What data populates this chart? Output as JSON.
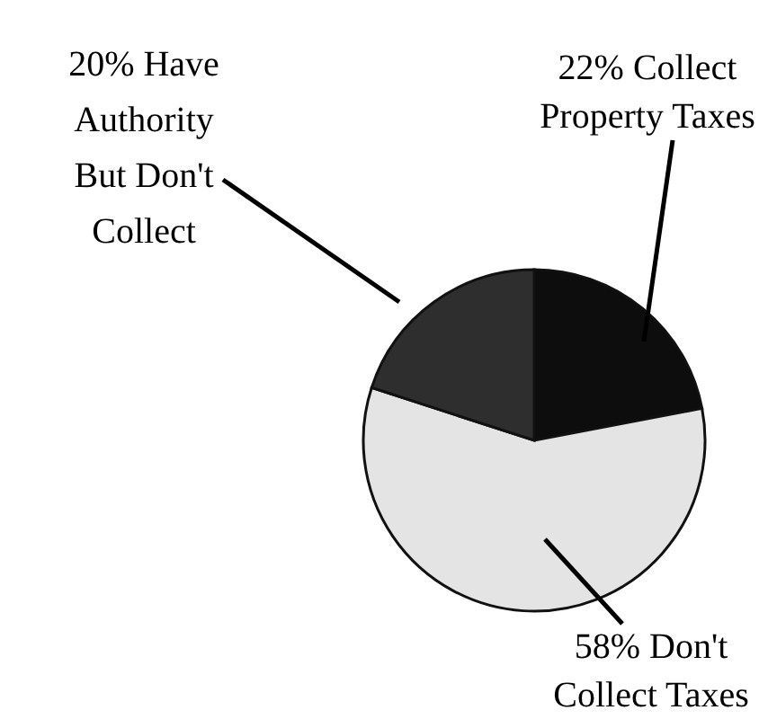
{
  "chart_data": {
    "type": "pie",
    "categories": [
      "Collect Property Taxes",
      "Don't Collect Taxes",
      "Have Authority But Don't Collect"
    ],
    "values": [
      22,
      58,
      20
    ],
    "value_labels": [
      "22%",
      "58%",
      "20%"
    ],
    "colors": [
      "#0d0d0d",
      "#e4e4e4",
      "#2e2e2e"
    ]
  }
}
